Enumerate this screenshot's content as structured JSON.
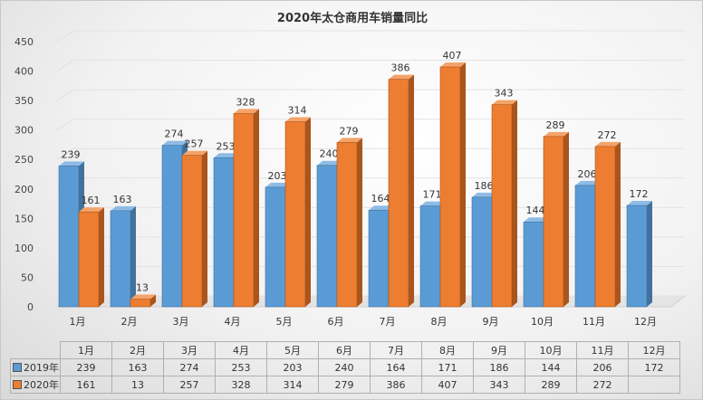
{
  "chart_data": {
    "type": "bar",
    "title": "2020年太仓商用车销量同比",
    "categories": [
      "1月",
      "2月",
      "3月",
      "4月",
      "5月",
      "6月",
      "7月",
      "8月",
      "9月",
      "10月",
      "11月",
      "12月"
    ],
    "series": [
      {
        "name": "2019年",
        "color": "#5b9bd5",
        "values": [
          239,
          163,
          274,
          253,
          203,
          240,
          164,
          171,
          186,
          144,
          206,
          172
        ]
      },
      {
        "name": "2020年",
        "color": "#ed7d31",
        "values": [
          161,
          13,
          257,
          328,
          314,
          279,
          386,
          407,
          343,
          289,
          272,
          null
        ]
      }
    ],
    "ylim": [
      0,
      450
    ],
    "yticks": [
      "0",
      "50",
      "100",
      "150",
      "200",
      "250",
      "300",
      "350",
      "400",
      "450"
    ],
    "xlabel": "",
    "ylabel": "",
    "grid": true,
    "legend": "data-table-bottom",
    "style": "3d-clustered-column"
  }
}
